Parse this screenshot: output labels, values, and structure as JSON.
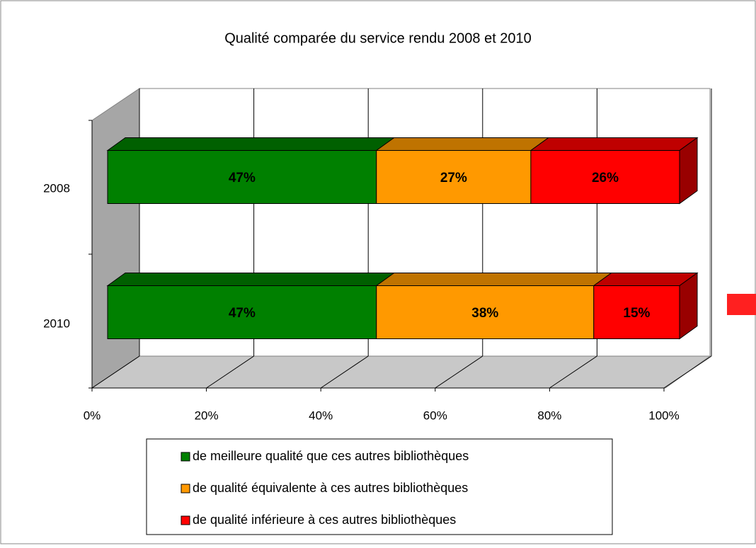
{
  "chart_data": {
    "type": "bar",
    "orientation": "horizontal",
    "stacked": true,
    "three_d": true,
    "title": "Qualité comparée du service rendu 2008 et 2010",
    "categories": [
      "2008",
      "2010"
    ],
    "series": [
      {
        "name": "de meilleure qualité que ces autres bibliothèques",
        "color": "#008000",
        "values": [
          47,
          47
        ],
        "value_labels": [
          "47%",
          "47%"
        ]
      },
      {
        "name": "de qualité équivalente à ces autres bibliothèques",
        "color": "#ff9900",
        "values": [
          27,
          38
        ],
        "value_labels": [
          "27%",
          "38%"
        ]
      },
      {
        "name": "de qualité inférieure à ces autres bibliothèques",
        "color": "#ff0000",
        "values": [
          26,
          15
        ],
        "value_labels": [
          "26%",
          "15%"
        ]
      }
    ],
    "xlim": [
      0,
      100
    ],
    "xticks": [
      {
        "value": 0,
        "label": "0%"
      },
      {
        "value": 20,
        "label": "20%"
      },
      {
        "value": 40,
        "label": "40%"
      },
      {
        "value": 60,
        "label": "60%"
      },
      {
        "value": 80,
        "label": "80%"
      },
      {
        "value": 100,
        "label": "100%"
      }
    ],
    "grid": true,
    "legend": "bottom"
  }
}
